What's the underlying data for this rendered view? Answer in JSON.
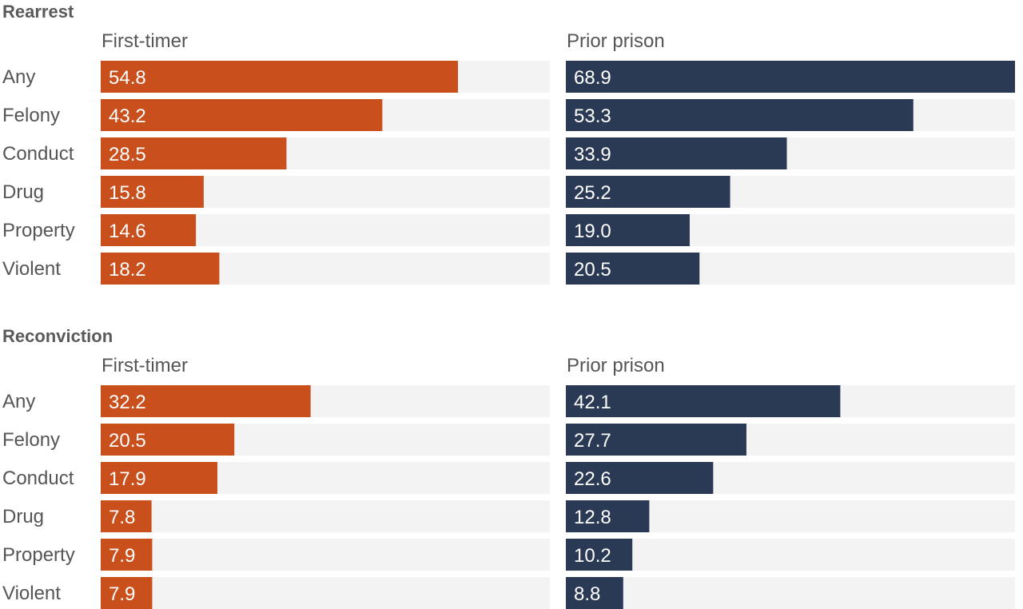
{
  "colors": {
    "first_timer": "#c94f1d",
    "prior_prison": "#2a3a55",
    "track": "#f3f3f3",
    "section_title": "#5a5a5a",
    "label": "#555555"
  },
  "chart_data": [
    {
      "type": "bar",
      "orientation": "horizontal",
      "title": "Rearrest",
      "categories": [
        "Any",
        "Felony",
        "Conduct",
        "Drug",
        "Property",
        "Violent"
      ],
      "xlim": [
        0,
        68.9
      ],
      "series": [
        {
          "name": "First-timer",
          "values": [
            54.8,
            43.2,
            28.5,
            15.8,
            14.6,
            18.2
          ]
        },
        {
          "name": "Prior prison",
          "values": [
            68.9,
            53.3,
            33.9,
            25.2,
            19.0,
            20.5
          ]
        }
      ]
    },
    {
      "type": "bar",
      "orientation": "horizontal",
      "title": "Reconviction",
      "categories": [
        "Any",
        "Felony",
        "Conduct",
        "Drug",
        "Property",
        "Violent"
      ],
      "xlim": [
        0,
        68.9
      ],
      "series": [
        {
          "name": "First-timer",
          "values": [
            32.2,
            20.5,
            17.9,
            7.8,
            7.9,
            7.9
          ]
        },
        {
          "name": "Prior prison",
          "values": [
            42.1,
            27.7,
            22.6,
            12.8,
            10.2,
            8.8
          ]
        }
      ]
    }
  ]
}
